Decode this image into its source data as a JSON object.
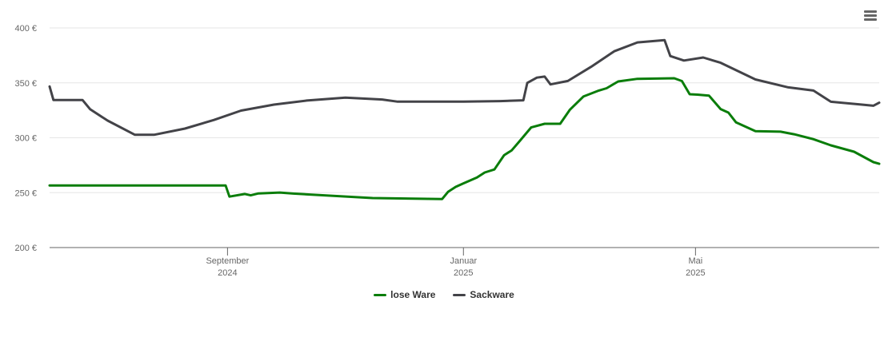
{
  "chart_data": {
    "type": "line",
    "title": "",
    "xlabel": "",
    "ylabel": "",
    "ylim": [
      200,
      400
    ],
    "xlim": [
      "2024-06-01",
      "2025-08-04"
    ],
    "yticks": [
      {
        "value": 200,
        "label": "200 €"
      },
      {
        "value": 250,
        "label": "250 €"
      },
      {
        "value": 300,
        "label": "300 €"
      },
      {
        "value": 350,
        "label": "350 €"
      },
      {
        "value": 400,
        "label": "400 €"
      }
    ],
    "xticks": [
      {
        "date": "2024-09-01",
        "label": "September",
        "year": "2024"
      },
      {
        "date": "2025-01-01",
        "label": "Januar",
        "year": "2025"
      },
      {
        "date": "2025-05-01",
        "label": "Mai",
        "year": "2025"
      }
    ],
    "grid": true,
    "legend_position": "bottom-center",
    "series": [
      {
        "name": "lose Ware",
        "color": "#0a7d0a",
        "points": [
          [
            "2024-06-01",
            256.6
          ],
          [
            "2024-08-31",
            256.6
          ],
          [
            "2024-09-02",
            246.4
          ],
          [
            "2024-09-10",
            248.8
          ],
          [
            "2024-09-13",
            247.6
          ],
          [
            "2024-09-17",
            249.3
          ],
          [
            "2024-09-28",
            250.1
          ],
          [
            "2024-10-05",
            249.2
          ],
          [
            "2024-11-15",
            245.1
          ],
          [
            "2024-12-21",
            244.2
          ],
          [
            "2024-12-24",
            250.7
          ],
          [
            "2024-12-28",
            255.3
          ],
          [
            "2025-01-01",
            258.5
          ],
          [
            "2025-01-08",
            263.8
          ],
          [
            "2025-01-12",
            268.4
          ],
          [
            "2025-01-17",
            271.1
          ],
          [
            "2025-01-22",
            284.1
          ],
          [
            "2025-01-26",
            288.6
          ],
          [
            "2025-01-30",
            296.8
          ],
          [
            "2025-02-05",
            309.4
          ],
          [
            "2025-02-12",
            312.7
          ],
          [
            "2025-02-20",
            312.7
          ],
          [
            "2025-02-25",
            325.4
          ],
          [
            "2025-03-04",
            337.5
          ],
          [
            "2025-03-12",
            343.0
          ],
          [
            "2025-03-16",
            345.1
          ],
          [
            "2025-03-22",
            351.3
          ],
          [
            "2025-04-01",
            353.7
          ],
          [
            "2025-04-20",
            354.2
          ],
          [
            "2025-04-24",
            351.6
          ],
          [
            "2025-04-28",
            339.6
          ],
          [
            "2025-05-02",
            339.3
          ],
          [
            "2025-05-08",
            338.3
          ],
          [
            "2025-05-14",
            326.1
          ],
          [
            "2025-05-18",
            322.9
          ],
          [
            "2025-05-22",
            314.0
          ],
          [
            "2025-06-01",
            306.0
          ],
          [
            "2025-06-14",
            305.5
          ],
          [
            "2025-06-21",
            303.2
          ],
          [
            "2025-07-01",
            298.7
          ],
          [
            "2025-07-10",
            293.1
          ],
          [
            "2025-07-22",
            287.3
          ],
          [
            "2025-08-01",
            277.8
          ],
          [
            "2025-08-04",
            276.3
          ]
        ]
      },
      {
        "name": "Sackware",
        "color": "#434348",
        "points": [
          [
            "2024-06-01",
            346.7
          ],
          [
            "2024-06-03",
            334.4
          ],
          [
            "2024-06-18",
            334.4
          ],
          [
            "2024-06-22",
            325.9
          ],
          [
            "2024-07-01",
            315.6
          ],
          [
            "2024-07-15",
            302.8
          ],
          [
            "2024-07-25",
            302.7
          ],
          [
            "2024-08-10",
            308.4
          ],
          [
            "2024-08-25",
            316.2
          ],
          [
            "2024-09-08",
            324.7
          ],
          [
            "2024-09-25",
            330.2
          ],
          [
            "2024-10-12",
            333.9
          ],
          [
            "2024-11-01",
            336.6
          ],
          [
            "2024-11-20",
            334.8
          ],
          [
            "2024-11-28",
            332.9
          ],
          [
            "2025-01-01",
            332.9
          ],
          [
            "2025-01-20",
            333.4
          ],
          [
            "2025-02-01",
            334.1
          ],
          [
            "2025-02-03",
            350.0
          ],
          [
            "2025-02-08",
            354.8
          ],
          [
            "2025-02-12",
            355.7
          ],
          [
            "2025-02-15",
            348.6
          ],
          [
            "2025-02-24",
            351.7
          ],
          [
            "2025-03-08",
            364.6
          ],
          [
            "2025-03-20",
            378.8
          ],
          [
            "2025-04-01",
            386.8
          ],
          [
            "2025-04-15",
            388.9
          ],
          [
            "2025-04-18",
            374.4
          ],
          [
            "2025-04-25",
            370.3
          ],
          [
            "2025-05-05",
            373.1
          ],
          [
            "2025-05-14",
            368.3
          ],
          [
            "2025-06-01",
            353.1
          ],
          [
            "2025-06-18",
            345.9
          ],
          [
            "2025-07-01",
            343.0
          ],
          [
            "2025-07-10",
            332.8
          ],
          [
            "2025-07-25",
            330.3
          ],
          [
            "2025-08-01",
            329.2
          ],
          [
            "2025-08-04",
            331.9
          ]
        ]
      }
    ]
  }
}
